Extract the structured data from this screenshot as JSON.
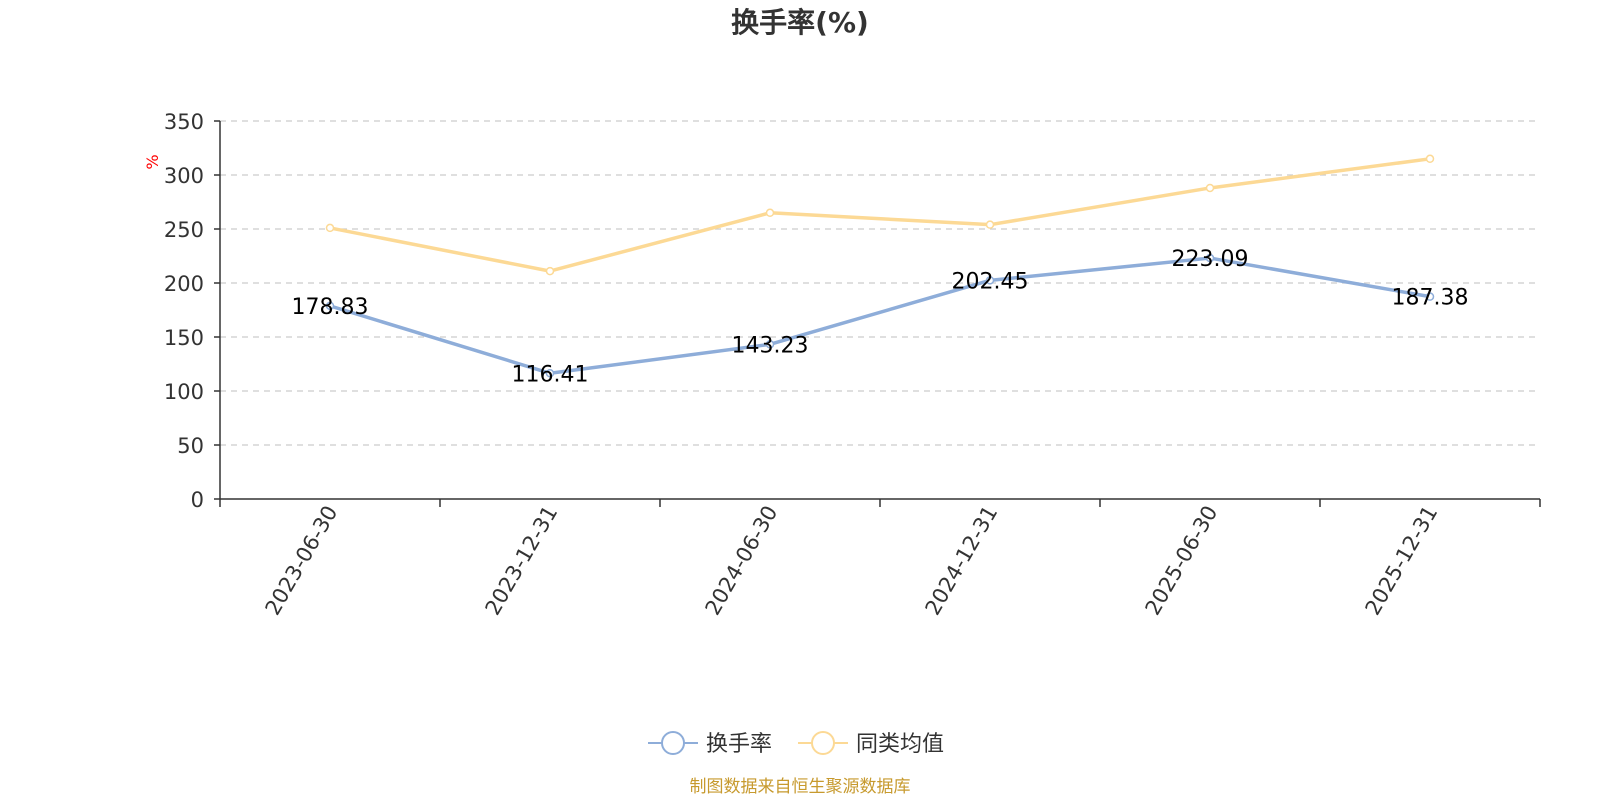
{
  "chart_data": {
    "type": "line",
    "title": "换手率(%)",
    "ylabel": "%",
    "xlabel": "",
    "categories": [
      "2023-06-30",
      "2023-12-31",
      "2024-06-30",
      "2024-12-31",
      "2025-06-30",
      "2025-12-31"
    ],
    "ylim": [
      0,
      350
    ],
    "yticks": [
      0,
      50,
      100,
      150,
      200,
      250,
      300,
      350
    ],
    "grid": true,
    "legend_position": "bottom",
    "series": [
      {
        "name": "换手率",
        "color": "#8eadd9",
        "values": [
          178.83,
          116.41,
          143.23,
          202.45,
          223.09,
          187.38
        ],
        "show_labels": true
      },
      {
        "name": "同类均值",
        "color": "#fcd995",
        "values": [
          251,
          211,
          265,
          254,
          288,
          315
        ],
        "show_labels": false
      }
    ]
  },
  "footer": {
    "source": "制图数据来自恒生聚源数据库",
    "color": "#c79a2e"
  },
  "colors": {
    "axis": "#333333",
    "grid": "#cccccc",
    "ylabel": "#ff0000"
  }
}
